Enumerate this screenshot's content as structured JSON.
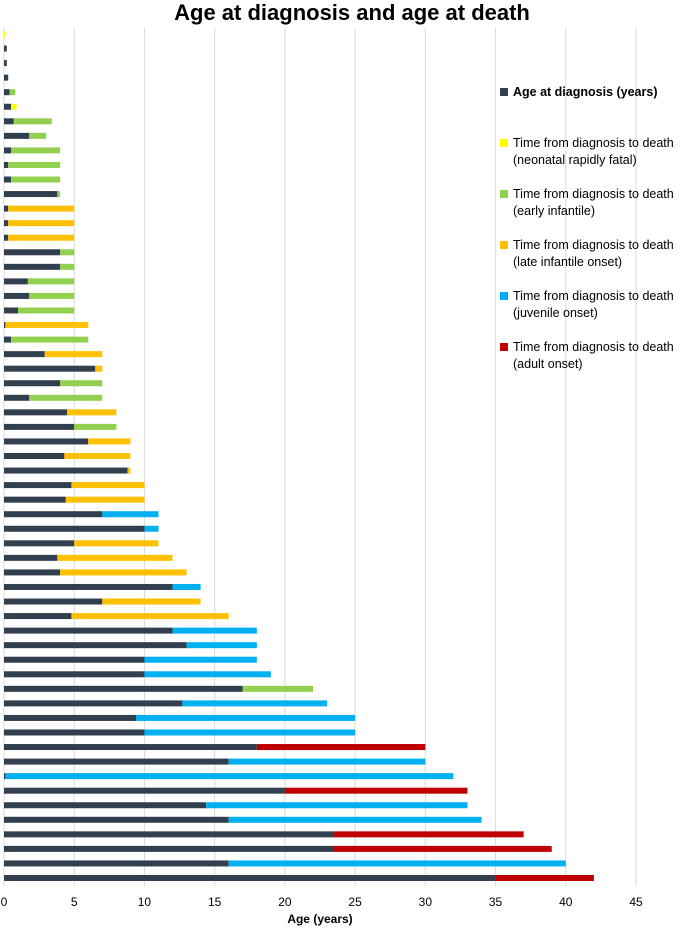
{
  "chart_data": {
    "type": "stacked-bar-horizontal",
    "title": "Age at diagnosis and age at death",
    "xlabel": "Age (years)",
    "xlim": [
      0,
      45
    ],
    "xticks": [
      0,
      5,
      10,
      15,
      20,
      25,
      30,
      35,
      40,
      45
    ],
    "grid": true,
    "legend": "right",
    "series": [
      {
        "name": "Age at diagnosis (years)",
        "color": "#323f4f",
        "values": [
          0,
          0.2,
          0.2,
          0.3,
          0.4,
          0.5,
          0.7,
          1.8,
          0.5,
          0.3,
          0.5,
          3.8,
          0.3,
          0.3,
          0.3,
          4,
          4,
          1.7,
          1.8,
          1,
          0.1,
          0.5,
          2.9,
          6.5,
          4,
          1.8,
          4.5,
          5,
          6,
          4.3,
          8.8,
          4.8,
          4.4,
          7,
          10,
          5,
          3.8,
          4,
          12,
          7,
          4.8,
          12,
          13,
          10,
          10,
          17,
          12.7,
          9.4,
          10,
          18,
          16,
          0.1,
          20,
          14.4,
          16,
          23.5,
          23.5,
          16,
          35
        ]
      },
      {
        "name": "Time from diagnosis to death (neonatal rapidly fatal)",
        "color": "#ffff00",
        "values": [
          0.1,
          null,
          null,
          null,
          null,
          0.4,
          null,
          null,
          null,
          null,
          null,
          null,
          null,
          null,
          null,
          null,
          null,
          null,
          null,
          null,
          null,
          null,
          null,
          null,
          null,
          null,
          null,
          null,
          null,
          null,
          null,
          null,
          null,
          null,
          null,
          null,
          null,
          null,
          null,
          null,
          null,
          null,
          null,
          null,
          null,
          null,
          null,
          null,
          null,
          null,
          null,
          null,
          null,
          null,
          null,
          null,
          null,
          null,
          null
        ]
      },
      {
        "name": "Time from diagnosis to death (early infantile)",
        "color": "#92d050",
        "values": [
          null,
          null,
          null,
          null,
          0.4,
          null,
          2.7,
          1.2,
          3.5,
          3.7,
          3.5,
          0.2,
          null,
          null,
          null,
          1,
          1,
          3.3,
          3.2,
          4,
          null,
          5.5,
          null,
          null,
          3,
          5.2,
          null,
          3,
          null,
          null,
          null,
          null,
          null,
          null,
          null,
          null,
          null,
          null,
          null,
          null,
          null,
          null,
          null,
          null,
          null,
          5,
          null,
          null,
          null,
          null,
          null,
          null,
          null,
          null,
          null,
          null,
          null,
          null,
          null
        ]
      },
      {
        "name": "Time from diagnosis to death (late infantile onset)",
        "color": "#ffc000",
        "values": [
          null,
          null,
          null,
          null,
          null,
          null,
          null,
          null,
          null,
          null,
          null,
          null,
          4.7,
          4.7,
          4.7,
          null,
          null,
          null,
          null,
          null,
          5.9,
          null,
          4.1,
          0.5,
          null,
          null,
          3.5,
          null,
          3,
          4.7,
          0.2,
          5.2,
          5.6,
          null,
          null,
          6,
          8.2,
          9,
          null,
          7,
          11.2,
          null,
          null,
          null,
          null,
          null,
          null,
          null,
          null,
          null,
          null,
          null,
          null,
          null,
          null,
          null,
          null,
          null,
          null
        ]
      },
      {
        "name": "Time from diagnosis to death (juvenile onset)",
        "color": "#00b0f0",
        "values": [
          null,
          null,
          null,
          null,
          null,
          null,
          null,
          null,
          null,
          null,
          null,
          null,
          null,
          null,
          null,
          null,
          null,
          null,
          null,
          null,
          null,
          null,
          null,
          null,
          null,
          null,
          null,
          null,
          null,
          null,
          null,
          null,
          null,
          4,
          1,
          null,
          null,
          null,
          2,
          null,
          null,
          6,
          5,
          8,
          9,
          null,
          10.3,
          15.6,
          15,
          null,
          14,
          31.9,
          null,
          18.6,
          18,
          null,
          null,
          24,
          null
        ]
      },
      {
        "name": "Time from diagnosis to death (adult onset)",
        "color": "#c00000",
        "values": [
          null,
          null,
          null,
          null,
          null,
          null,
          null,
          null,
          null,
          null,
          null,
          null,
          null,
          null,
          null,
          null,
          null,
          null,
          null,
          null,
          null,
          null,
          null,
          null,
          null,
          null,
          null,
          null,
          null,
          null,
          null,
          null,
          null,
          null,
          null,
          null,
          null,
          null,
          null,
          null,
          null,
          null,
          null,
          null,
          null,
          null,
          null,
          null,
          null,
          12,
          null,
          null,
          13,
          null,
          null,
          13.5,
          15.5,
          null,
          7
        ]
      }
    ]
  }
}
